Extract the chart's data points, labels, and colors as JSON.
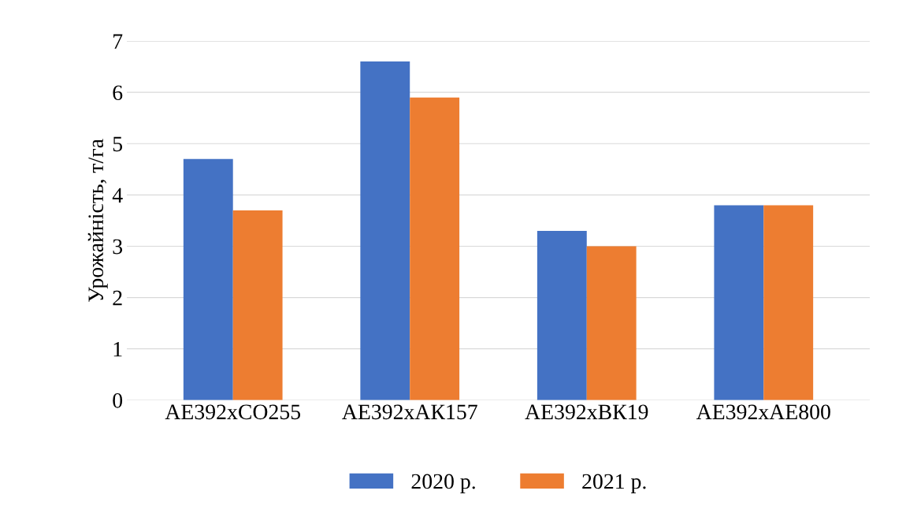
{
  "chart_data": {
    "type": "bar",
    "ylabel": "Урожайність, т/га",
    "categories": [
      "АЕ392хСО255",
      "АЕ392хАК157",
      "АЕ392хВК19",
      "АЕ392хАЕ800"
    ],
    "series": [
      {
        "name": "2020 р.",
        "color": "#4472c4",
        "values": [
          4.7,
          6.6,
          3.3,
          3.8
        ]
      },
      {
        "name": "2021 р.",
        "color": "#ed7d31",
        "values": [
          3.7,
          5.9,
          3.0,
          3.8
        ]
      }
    ],
    "ylim": [
      0,
      7
    ],
    "yticks": [
      0,
      1,
      2,
      3,
      4,
      5,
      6,
      7
    ],
    "grid": "y",
    "legend": "bottom"
  }
}
